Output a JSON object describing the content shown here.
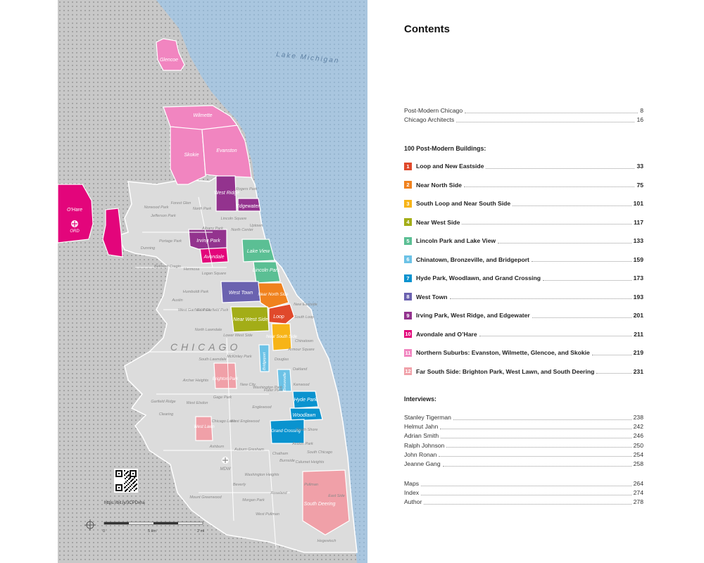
{
  "toc": {
    "title": "Contents",
    "intro": [
      {
        "title": "Post-Modern Chicago",
        "page": "8"
      },
      {
        "title": "Chicago Architects",
        "page": "16"
      }
    ],
    "buildings_heading": "100 Post-Modern Buildings:",
    "chapters": [
      {
        "num": "1",
        "title": "Loop and New Eastside",
        "page": "33",
        "color": "#e0492b"
      },
      {
        "num": "2",
        "title": "Near North Side",
        "page": "75",
        "color": "#f0821e"
      },
      {
        "num": "3",
        "title": "South Loop and Near South Side",
        "page": "101",
        "color": "#f7b417"
      },
      {
        "num": "4",
        "title": "Near West Side",
        "page": "117",
        "color": "#a3ad17"
      },
      {
        "num": "5",
        "title": "Lincoln Park and Lake View",
        "page": "133",
        "color": "#5bbf94"
      },
      {
        "num": "6",
        "title": "Chinatown, Bronzeville, and Bridgeport",
        "page": "159",
        "color": "#6cc2e6"
      },
      {
        "num": "7",
        "title": "Hyde Park, Woodlawn, and Grand Crossing",
        "page": "173",
        "color": "#0a93cf"
      },
      {
        "num": "8",
        "title": "West Town",
        "page": "193",
        "color": "#6b62b0"
      },
      {
        "num": "9",
        "title": "Irving Park, West Ridge, and Edgewater",
        "page": "201",
        "color": "#93338e"
      },
      {
        "num": "10",
        "title": "Avondale and O’Hare",
        "page": "211",
        "color": "#e3057b"
      },
      {
        "num": "11",
        "title": "Northern Suburbs: Evanston, Wilmette, Glencoe, and Skokie",
        "page": "219",
        "color": "#f185c0"
      },
      {
        "num": "12",
        "title": "Far South Side: Brighton Park, West Lawn, and South Deering",
        "page": "231",
        "color": "#f0a0a8"
      }
    ],
    "interviews_heading": "Interviews:",
    "interviews": [
      {
        "title": "Stanley Tigerman",
        "page": "238"
      },
      {
        "title": "Helmut Jahn",
        "page": "242"
      },
      {
        "title": "Adrian Smith",
        "page": "246"
      },
      {
        "title": "Ralph Johnson",
        "page": "250"
      },
      {
        "title": "John Ronan",
        "page": "254"
      },
      {
        "title": "Jeanne Gang",
        "page": "258"
      }
    ],
    "appendix": [
      {
        "title": "Maps",
        "page": "264"
      },
      {
        "title": "Index",
        "page": "274"
      },
      {
        "title": "Author",
        "page": "278"
      }
    ]
  },
  "map": {
    "water_label": "Lake Michigan",
    "city_label": "CHICAGO",
    "qr_url": "https://bit.ly/3CPDxha",
    "scale_km": "5 km",
    "scale_mi": "2 mi",
    "scale_zero": "0",
    "airports": {
      "ohare": "O'Hare",
      "ord": "ORD",
      "mdw": "MDW"
    },
    "colored_labels": {
      "glencoe": "Glencoe",
      "wilmette": "Wilmette",
      "skokie": "Skokie",
      "evanston": "Evanston",
      "west_ridge": "West Ridge",
      "edgewater": "Edgewater",
      "irving_park": "Irving Park",
      "avondale": "Avondale",
      "lake_view": "Lake View",
      "lincoln_park": "Lincoln Park",
      "west_town": "West Town",
      "near_north_side": "Near North Side",
      "loop": "Loop",
      "near_west_side": "Near West Side",
      "near_south_side": "Near South Side",
      "bridgeport": "Bridgeport",
      "bronzeville": "Bronzeville",
      "hyde_park": "Hyde Park",
      "woodlawn": "Woodlawn",
      "grand_crossing": "Grand Crossing",
      "brighton_park": "Brighton Park",
      "west_lawn": "West Lawn",
      "south_deering": "South Deering"
    },
    "gray_labels": [
      "Rogers Park",
      "Norwood Park",
      "Forest Glen",
      "North Park",
      "Jefferson Park",
      "Lincoln Square",
      "Uptown",
      "Albany Park",
      "North Center",
      "Portage Park",
      "Dunning",
      "Belmont Cragin",
      "Logan Square",
      "Hermosa",
      "Humboldt Park",
      "Austin",
      "West Garfield Park",
      "East Garfield Park",
      "North Lawndale",
      "Lower West Side",
      "South Lawndale",
      "McKinley Park",
      "New Eastside",
      "South Loop",
      "Chinatown",
      "Armour Square",
      "Douglas",
      "Oakland",
      "Kenwood",
      "Fuller Park",
      "Archer Heights",
      "New City",
      "Gage Park",
      "Garfield Ridge",
      "West Elsdon",
      "Clearing",
      "Chicago Lawn",
      "West Englewood",
      "Englewood",
      "Washington Park",
      "South Shore",
      "Ashburn",
      "Auburn Gresham",
      "Chatham",
      "South Chicago",
      "Avalon Park",
      "Burnside",
      "Calumet Heights",
      "Washington Heights",
      "Beverly",
      "Roseland",
      "Pullman",
      "Mount Greenwood",
      "Morgan Park",
      "West Pullman",
      "East Side",
      "Hegewisch"
    ]
  }
}
